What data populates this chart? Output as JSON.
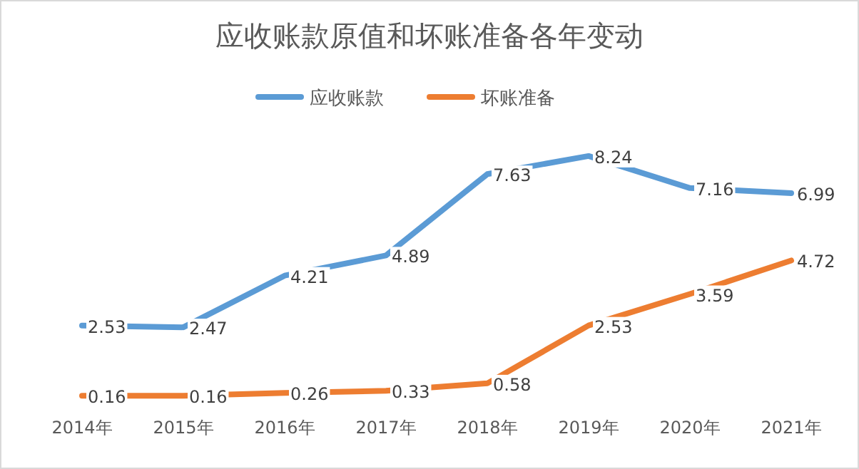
{
  "chart_data": {
    "type": "line",
    "title": "应收账款原值和坏账准备各年变动",
    "categories": [
      "2014年",
      "2015年",
      "2016年",
      "2017年",
      "2018年",
      "2019年",
      "2020年",
      "2021年"
    ],
    "series": [
      {
        "name": "应收账款",
        "color": "#5b9bd5",
        "values": [
          2.53,
          2.47,
          4.21,
          4.89,
          7.63,
          8.24,
          7.16,
          6.99
        ]
      },
      {
        "name": "坏账准备",
        "color": "#ed7d31",
        "values": [
          0.16,
          0.16,
          0.26,
          0.33,
          0.58,
          2.53,
          3.59,
          4.72
        ]
      }
    ],
    "data_labels": true,
    "legend": "top",
    "marker": "none",
    "line_style": "solid",
    "tick_labels": "x"
  }
}
